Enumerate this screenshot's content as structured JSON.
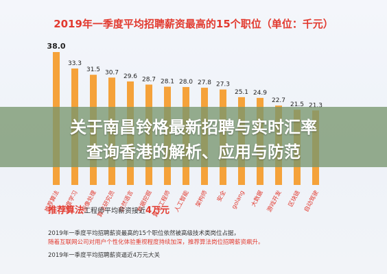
{
  "chart_data": {
    "type": "bar",
    "title": "2019年一季度平均招聘薪资最高的15个职位（单位：千元）",
    "categories": [
      "推荐算法",
      "深度学习",
      "图像处理",
      "算法研究员",
      "自然语言",
      "数据挖掘",
      "算法工程师",
      "人工智能",
      "架构师",
      "安全",
      "golang",
      "大数据",
      "游戏开发",
      "区块链",
      "自动驾驶"
    ],
    "values": [
      38.0,
      33.3,
      31.5,
      30.7,
      29.6,
      28.7,
      28.1,
      28.0,
      27.8,
      27.3,
      25.1,
      24.9,
      22.7,
      21.5,
      21.3
    ],
    "value_labels": [
      "38.0",
      "33.3",
      "31.5",
      "30.7",
      "29.6",
      "28.7",
      "28.1",
      "28.0",
      "27.8",
      "27.3",
      "25.1",
      "24.9",
      "22.7",
      "21.5",
      "21.3"
    ],
    "ylim": [
      0,
      40
    ],
    "grid": false,
    "colors": {
      "bar": "#f5a23a",
      "title": "#e23a2f",
      "category_label": "#e23a2f"
    }
  },
  "banner": {
    "line1": "关于南昌铃格最新招聘与实时汇率",
    "line2": "查询香港的解析、应用与防范"
  },
  "recommend": {
    "title": "推荐算法",
    "subtitle": "工程师平均薪资接近",
    "amount": "4万元"
  },
  "paragraphs": {
    "p1": "2019年一季度平均招聘薪资最高的15个职位依然被高级技术类岗位占据，",
    "p2": "随着互联网公司对用户个性化体验重视程度持续加深，推荐算法岗位招聘薪资飙升。",
    "p3": "2019年一季度平均招聘薪资逼近4万元大关"
  }
}
